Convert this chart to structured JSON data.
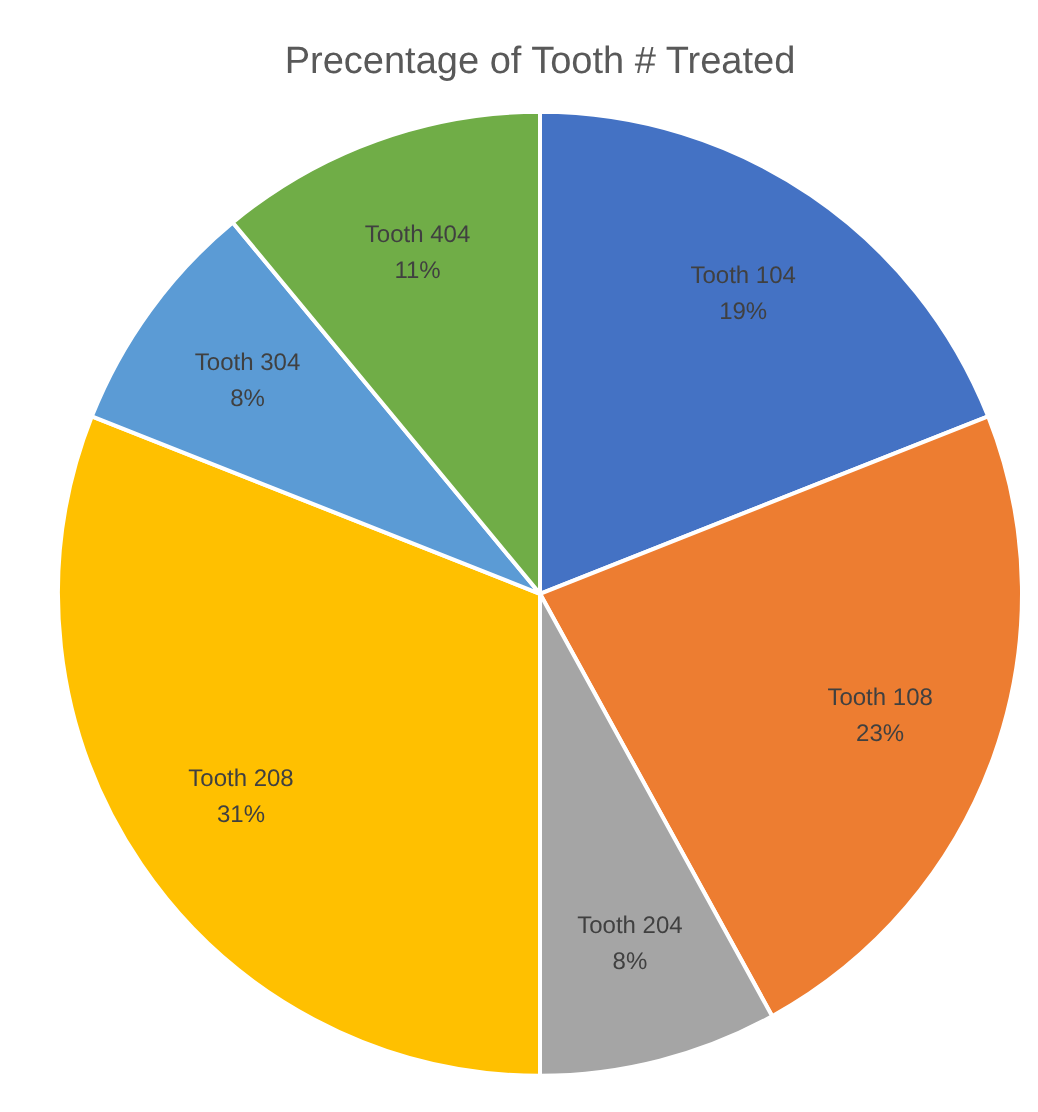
{
  "chart_data": {
    "type": "pie",
    "title": "Precentage of Tooth # Treated",
    "categories": [
      "Tooth 104",
      "Tooth 108",
      "Tooth 204",
      "Tooth 208",
      "Tooth 304",
      "Tooth 404"
    ],
    "values": [
      19,
      23,
      8,
      31,
      8,
      11
    ],
    "value_labels": [
      "19%",
      "23%",
      "8%",
      "31%",
      "8%",
      "11%"
    ],
    "colors": [
      "#4472c4",
      "#ed7d31",
      "#a5a5a5",
      "#ffc000",
      "#5b9bd5",
      "#70ad47"
    ],
    "legend": false
  }
}
